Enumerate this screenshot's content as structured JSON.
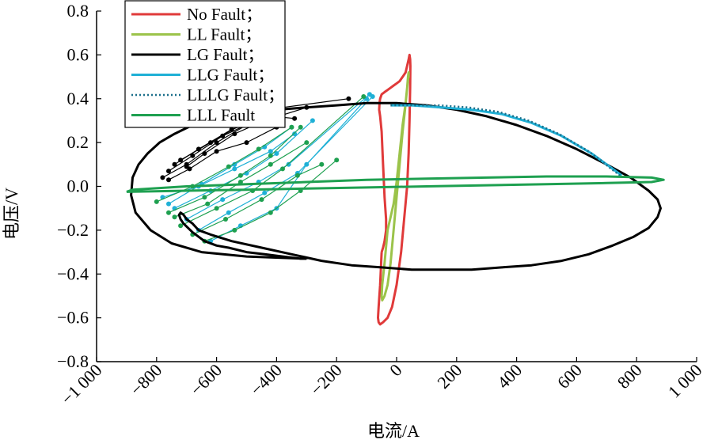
{
  "chart_data": {
    "type": "line",
    "xlabel": "电流/A",
    "ylabel": "电压/V",
    "xlim": [
      -1000,
      1000
    ],
    "ylim": [
      -0.8,
      0.8
    ],
    "xticks": [
      -1000,
      -800,
      -600,
      -400,
      -200,
      0,
      200,
      400,
      600,
      800,
      1000
    ],
    "xtick_labels": [
      "−1 000",
      "−800",
      "−600",
      "−400",
      "−200",
      "0",
      "200",
      "400",
      "600",
      "800",
      "1 000"
    ],
    "yticks": [
      0.8,
      0.6,
      0.4,
      0.2,
      0.0,
      -0.2,
      -0.4,
      -0.6,
      -0.8
    ],
    "ytick_labels": [
      "0.8",
      "0.6",
      "0.4",
      "0.2",
      "0.0",
      "−0.2",
      "−0.4",
      "−0.6",
      "−0.8"
    ],
    "grid": false,
    "legend_position": "top-left",
    "series": [
      {
        "name": "No Fault；",
        "color": "#e03a3a",
        "style": "solid",
        "x": [
          -50,
          -55,
          -60,
          -62,
          -60,
          -55,
          -45,
          -30,
          -15,
          0,
          15,
          25,
          35,
          40,
          43,
          45,
          46,
          45,
          43,
          40,
          35,
          30,
          20,
          10,
          0,
          -10,
          -20,
          -30,
          -40,
          -50,
          -55,
          -57,
          -58,
          -55,
          -50,
          -45,
          -40,
          -35,
          -35,
          -40,
          -45,
          -50
        ],
        "y": [
          -0.3,
          -0.45,
          -0.55,
          -0.6,
          -0.62,
          -0.63,
          -0.62,
          -0.6,
          -0.55,
          -0.45,
          -0.3,
          -0.15,
          0.0,
          0.15,
          0.3,
          0.45,
          0.55,
          0.58,
          0.6,
          0.58,
          0.55,
          0.52,
          0.5,
          0.48,
          0.47,
          0.46,
          0.45,
          0.44,
          0.43,
          0.42,
          0.4,
          0.38,
          0.35,
          0.32,
          0.25,
          0.1,
          -0.05,
          -0.15,
          -0.2,
          -0.25,
          -0.28,
          -0.3
        ]
      },
      {
        "name": "LL Fault；",
        "color": "#9bc34a",
        "style": "solid",
        "x": [
          -30,
          -40,
          -48,
          -50,
          -48,
          -40,
          -30,
          -20,
          -10,
          0,
          10,
          20,
          28,
          33,
          36,
          38,
          40,
          40,
          38,
          35,
          30,
          20,
          10,
          0,
          -10,
          -20,
          -25,
          -30
        ],
        "y": [
          -0.2,
          -0.35,
          -0.45,
          -0.5,
          -0.52,
          -0.5,
          -0.45,
          -0.35,
          -0.2,
          -0.05,
          0.1,
          0.25,
          0.35,
          0.42,
          0.46,
          0.49,
          0.5,
          0.52,
          0.5,
          0.45,
          0.38,
          0.28,
          0.15,
          0.02,
          -0.08,
          -0.14,
          -0.17,
          -0.2
        ]
      },
      {
        "name": "LG Fault；",
        "color": "#000000",
        "style": "solid",
        "x": [
          -300,
          -500,
          -650,
          -750,
          -820,
          -870,
          -885,
          -880,
          -860,
          -830,
          -790,
          -740,
          -680,
          -600,
          -500,
          -400,
          -300,
          -200,
          -100,
          0,
          100,
          200,
          300,
          400,
          500,
          600,
          700,
          780,
          840,
          870,
          880,
          870,
          840,
          790,
          720,
          640,
          550,
          450,
          350,
          250,
          150,
          50,
          -50,
          -150,
          -250,
          -350,
          -450,
          -550,
          -620,
          -660,
          -680,
          -700,
          -710,
          -720,
          -725,
          -720,
          -710,
          -695,
          -680,
          -660,
          -640,
          -600,
          -560,
          -500,
          -440,
          -380,
          -320,
          -300
        ],
        "y": [
          -0.33,
          -0.32,
          -0.3,
          -0.26,
          -0.2,
          -0.12,
          -0.04,
          0.04,
          0.1,
          0.15,
          0.2,
          0.24,
          0.28,
          0.31,
          0.33,
          0.35,
          0.36,
          0.37,
          0.38,
          0.38,
          0.37,
          0.35,
          0.32,
          0.28,
          0.23,
          0.17,
          0.1,
          0.04,
          -0.02,
          -0.06,
          -0.1,
          -0.14,
          -0.19,
          -0.23,
          -0.27,
          -0.31,
          -0.34,
          -0.36,
          -0.37,
          -0.38,
          -0.38,
          -0.38,
          -0.37,
          -0.36,
          -0.34,
          -0.31,
          -0.28,
          -0.25,
          -0.22,
          -0.2,
          -0.17,
          -0.15,
          -0.13,
          -0.12,
          -0.13,
          -0.15,
          -0.17,
          -0.19,
          -0.21,
          -0.23,
          -0.25,
          -0.27,
          -0.28,
          -0.3,
          -0.31,
          -0.32,
          -0.33,
          -0.33
        ]
      },
      {
        "name": "LLG Fault；",
        "color": "#1fb0d6",
        "style": "solid",
        "x": [
          750,
          720,
          690,
          650,
          600,
          550,
          500,
          450,
          400,
          350,
          300,
          250,
          200,
          150,
          100,
          50,
          0,
          -20
        ],
        "y": [
          0.05,
          0.08,
          0.11,
          0.15,
          0.19,
          0.23,
          0.26,
          0.29,
          0.31,
          0.33,
          0.34,
          0.35,
          0.355,
          0.36,
          0.365,
          0.37,
          0.37,
          0.37
        ]
      },
      {
        "name": "LLLG Fault；",
        "color": "#1a6e8a",
        "style": "dotted",
        "x": [
          745,
          715,
          680,
          640,
          590,
          540,
          490,
          440,
          390,
          340,
          290,
          240,
          190,
          140,
          90,
          40,
          0,
          -20
        ],
        "y": [
          0.05,
          0.08,
          0.12,
          0.16,
          0.2,
          0.24,
          0.27,
          0.3,
          0.32,
          0.34,
          0.35,
          0.36,
          0.365,
          0.37,
          0.37,
          0.37,
          0.37,
          0.37
        ]
      },
      {
        "name": "LLL Fault",
        "color": "#1ea050",
        "style": "solid",
        "x": [
          -900,
          -700,
          -500,
          -300,
          -100,
          100,
          300,
          500,
          700,
          850,
          890,
          850,
          700,
          500,
          300,
          100,
          -100,
          -300,
          -500,
          -700,
          -880,
          -900
        ],
        "y": [
          -0.025,
          -0.02,
          -0.015,
          -0.01,
          -0.005,
          0.0,
          0.005,
          0.01,
          0.015,
          0.02,
          0.03,
          0.04,
          0.045,
          0.045,
          0.04,
          0.035,
          0.03,
          0.02,
          0.01,
          0.0,
          -0.015,
          -0.025
        ]
      }
    ],
    "fault_traces": [
      {
        "color": "#000000",
        "segments": [
          [
            [
              -780,
              0.04
            ],
            [
              -700,
              0.1
            ],
            [
              -600,
              0.2
            ],
            [
              -500,
              0.28
            ],
            [
              -400,
              0.34
            ]
          ],
          [
            [
              -760,
              0.07
            ],
            [
              -680,
              0.14
            ],
            [
              -580,
              0.23
            ],
            [
              -470,
              0.3
            ],
            [
              -380,
              0.35
            ]
          ],
          [
            [
              -740,
              0.1
            ],
            [
              -660,
              0.17
            ],
            [
              -550,
              0.26
            ],
            [
              -420,
              0.32
            ],
            [
              -340,
              0.31
            ]
          ],
          [
            [
              -720,
              0.12
            ],
            [
              -620,
              0.2
            ],
            [
              -520,
              0.28
            ],
            [
              -380,
              0.36
            ],
            [
              -160,
              0.4
            ]
          ],
          [
            [
              -700,
              0.09
            ],
            [
              -640,
              0.15
            ],
            [
              -540,
              0.24
            ],
            [
              -440,
              0.3
            ],
            [
              -300,
              0.36
            ]
          ],
          [
            [
              -760,
              0.03
            ],
            [
              -690,
              0.08
            ],
            [
              -600,
              0.16
            ],
            [
              -500,
              0.2
            ],
            [
              -400,
              0.27
            ]
          ]
        ]
      },
      {
        "color": "#1fb0d6",
        "segments": [
          [
            [
              -780,
              -0.05
            ],
            [
              -660,
              0.0
            ],
            [
              -540,
              0.08
            ],
            [
              -420,
              0.16
            ],
            [
              -340,
              0.24
            ]
          ],
          [
            [
              -740,
              -0.1
            ],
            [
              -620,
              -0.02
            ],
            [
              -500,
              0.06
            ],
            [
              -400,
              0.15
            ],
            [
              -280,
              0.3
            ]
          ],
          [
            [
              -700,
              -0.15
            ],
            [
              -580,
              -0.06
            ],
            [
              -460,
              0.02
            ],
            [
              -360,
              0.1
            ],
            [
              -90,
              0.42
            ]
          ],
          [
            [
              -660,
              -0.2
            ],
            [
              -560,
              -0.12
            ],
            [
              -440,
              -0.03
            ],
            [
              -330,
              0.06
            ],
            [
              -80,
              0.41
            ]
          ],
          [
            [
              -620,
              -0.25
            ],
            [
              -520,
              -0.18
            ],
            [
              -400,
              -0.1
            ],
            [
              -300,
              0.1
            ],
            [
              -100,
              0.4
            ]
          ],
          [
            [
              -760,
              -0.08
            ],
            [
              -650,
              0.01
            ],
            [
              -540,
              0.1
            ],
            [
              -440,
              0.18
            ],
            [
              -350,
              0.27
            ]
          ]
        ]
      },
      {
        "color": "#1ea050",
        "segments": [
          [
            [
              -800,
              -0.07
            ],
            [
              -680,
              0.0
            ],
            [
              -560,
              0.09
            ],
            [
              -460,
              0.17
            ],
            [
              -350,
              0.27
            ]
          ],
          [
            [
              -760,
              -0.12
            ],
            [
              -640,
              -0.05
            ],
            [
              -520,
              0.05
            ],
            [
              -420,
              0.14
            ],
            [
              -320,
              0.27
            ]
          ],
          [
            [
              -720,
              -0.18
            ],
            [
              -600,
              -0.1
            ],
            [
              -480,
              -0.02
            ],
            [
              -380,
              0.08
            ],
            [
              -110,
              0.41
            ]
          ],
          [
            [
              -680,
              -0.22
            ],
            [
              -570,
              -0.15
            ],
            [
              -450,
              -0.06
            ],
            [
              -330,
              0.05
            ],
            [
              -250,
              0.1
            ]
          ],
          [
            [
              -640,
              -0.25
            ],
            [
              -540,
              -0.2
            ],
            [
              -420,
              -0.12
            ],
            [
              -320,
              -0.02
            ],
            [
              -200,
              0.12
            ]
          ],
          [
            [
              -740,
              -0.14
            ],
            [
              -630,
              -0.08
            ],
            [
              -520,
              0.02
            ],
            [
              -420,
              0.1
            ],
            [
              -300,
              0.2
            ]
          ]
        ]
      }
    ]
  }
}
